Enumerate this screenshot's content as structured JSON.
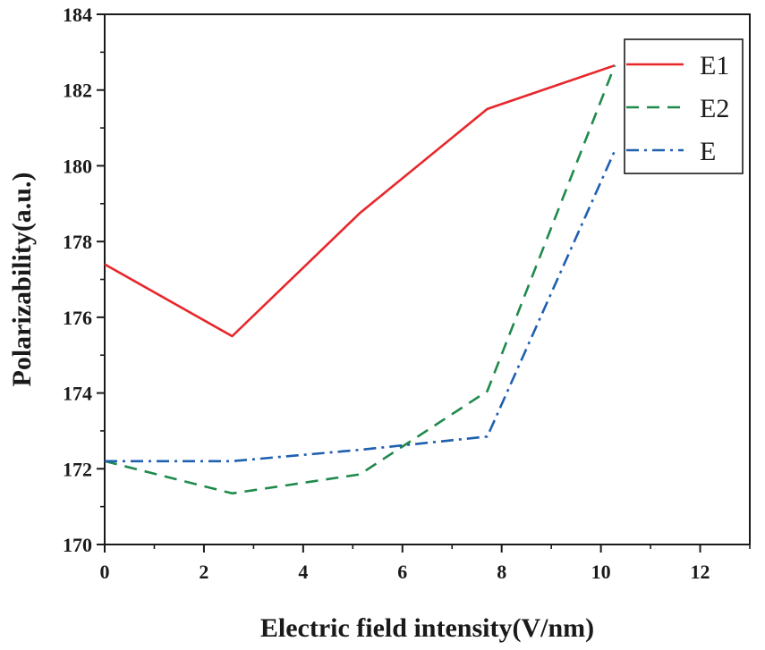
{
  "chart_data": {
    "type": "line",
    "xlabel": "Electric field intensity(V/nm)",
    "ylabel": "Polarizability(a.u.)",
    "xlim": [
      0,
      13
    ],
    "ylim": [
      170,
      184
    ],
    "x_ticks": [
      0,
      2,
      4,
      6,
      8,
      10,
      12
    ],
    "y_ticks": [
      170,
      172,
      174,
      176,
      178,
      180,
      182,
      184
    ],
    "x_tick_labels": [
      "0",
      "2",
      "4",
      "6",
      "8",
      "10",
      "12"
    ],
    "y_tick_labels": [
      "170",
      "172",
      "174",
      "176",
      "178",
      "180",
      "182",
      "184"
    ],
    "x": [
      0,
      2.57,
      5.14,
      7.71,
      10.28
    ],
    "series": [
      {
        "name": "E1",
        "values": [
          177.4,
          175.5,
          178.75,
          181.5,
          182.65
        ],
        "color": "#e8262a",
        "dash": "solid"
      },
      {
        "name": "E2",
        "values": [
          172.2,
          171.35,
          171.85,
          174.05,
          182.65
        ],
        "color": "#1f8a4c",
        "dash": "dashed"
      },
      {
        "name": "E",
        "values": [
          172.2,
          172.2,
          172.5,
          172.85,
          180.4
        ],
        "color": "#1f5fb0",
        "dash": "dashdot"
      }
    ],
    "legend_position": "top-right",
    "grid": false
  }
}
